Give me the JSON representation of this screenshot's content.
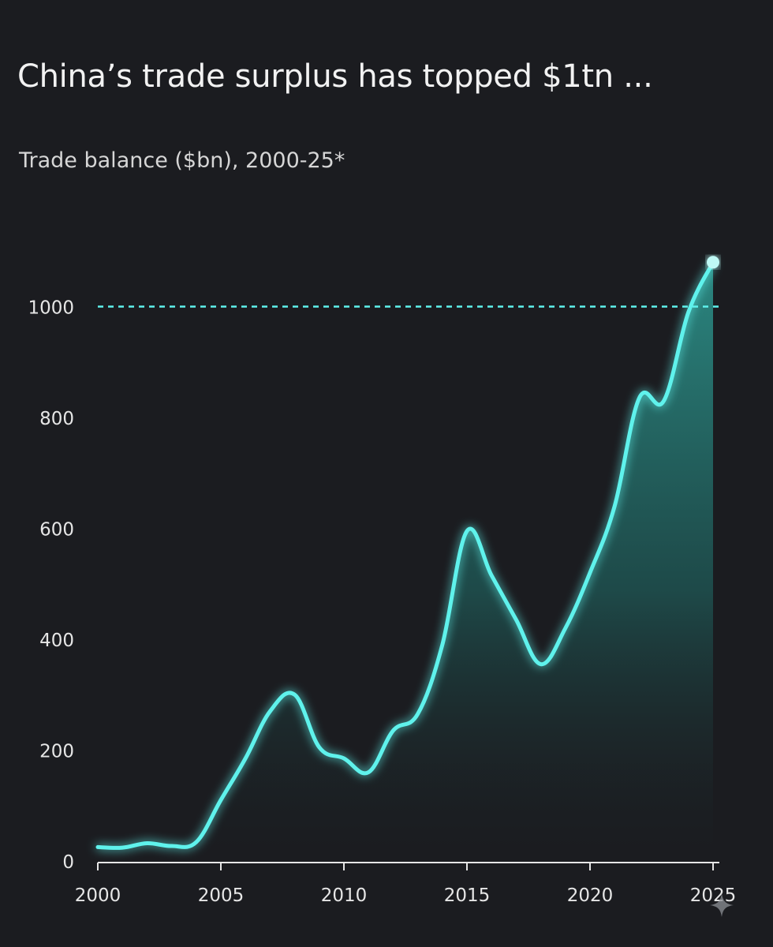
{
  "chart_data": {
    "type": "area",
    "title": "China’s trade surplus has topped $1tn ...",
    "subtitle": "Trade balance ($bn), 2000-25*",
    "xlabel": "",
    "ylabel": "",
    "xlim": [
      2000,
      2025
    ],
    "ylim": [
      0,
      1100
    ],
    "x_ticks": [
      "2000",
      "2005",
      "2010",
      "2015",
      "2020",
      "2025"
    ],
    "y_ticks": [
      "0",
      "200",
      "400",
      "600",
      "800",
      "1000"
    ],
    "reference_line": {
      "y": 1000,
      "style": "dashed"
    },
    "grid": false,
    "colors": {
      "background": "#1b1c20",
      "line": "#5ff2ec",
      "fill_top": "#2c8d86",
      "text": "#e6e6e6"
    },
    "series": [
      {
        "x": [
          2000,
          2001,
          2002,
          2003,
          2004,
          2005,
          2006,
          2007,
          2008,
          2009,
          2010,
          2011,
          2012,
          2013,
          2014,
          2015,
          2016,
          2017,
          2018,
          2019,
          2020,
          2021,
          2022,
          2023,
          2024,
          2025
        ],
        "values": [
          25,
          24,
          32,
          27,
          34,
          110,
          185,
          270,
          300,
          205,
          185,
          160,
          235,
          265,
          390,
          595,
          515,
          435,
          355,
          420,
          520,
          640,
          835,
          830,
          990,
          1080
        ]
      }
    ],
    "end_marker": {
      "x": 2025,
      "y": 1080
    }
  }
}
